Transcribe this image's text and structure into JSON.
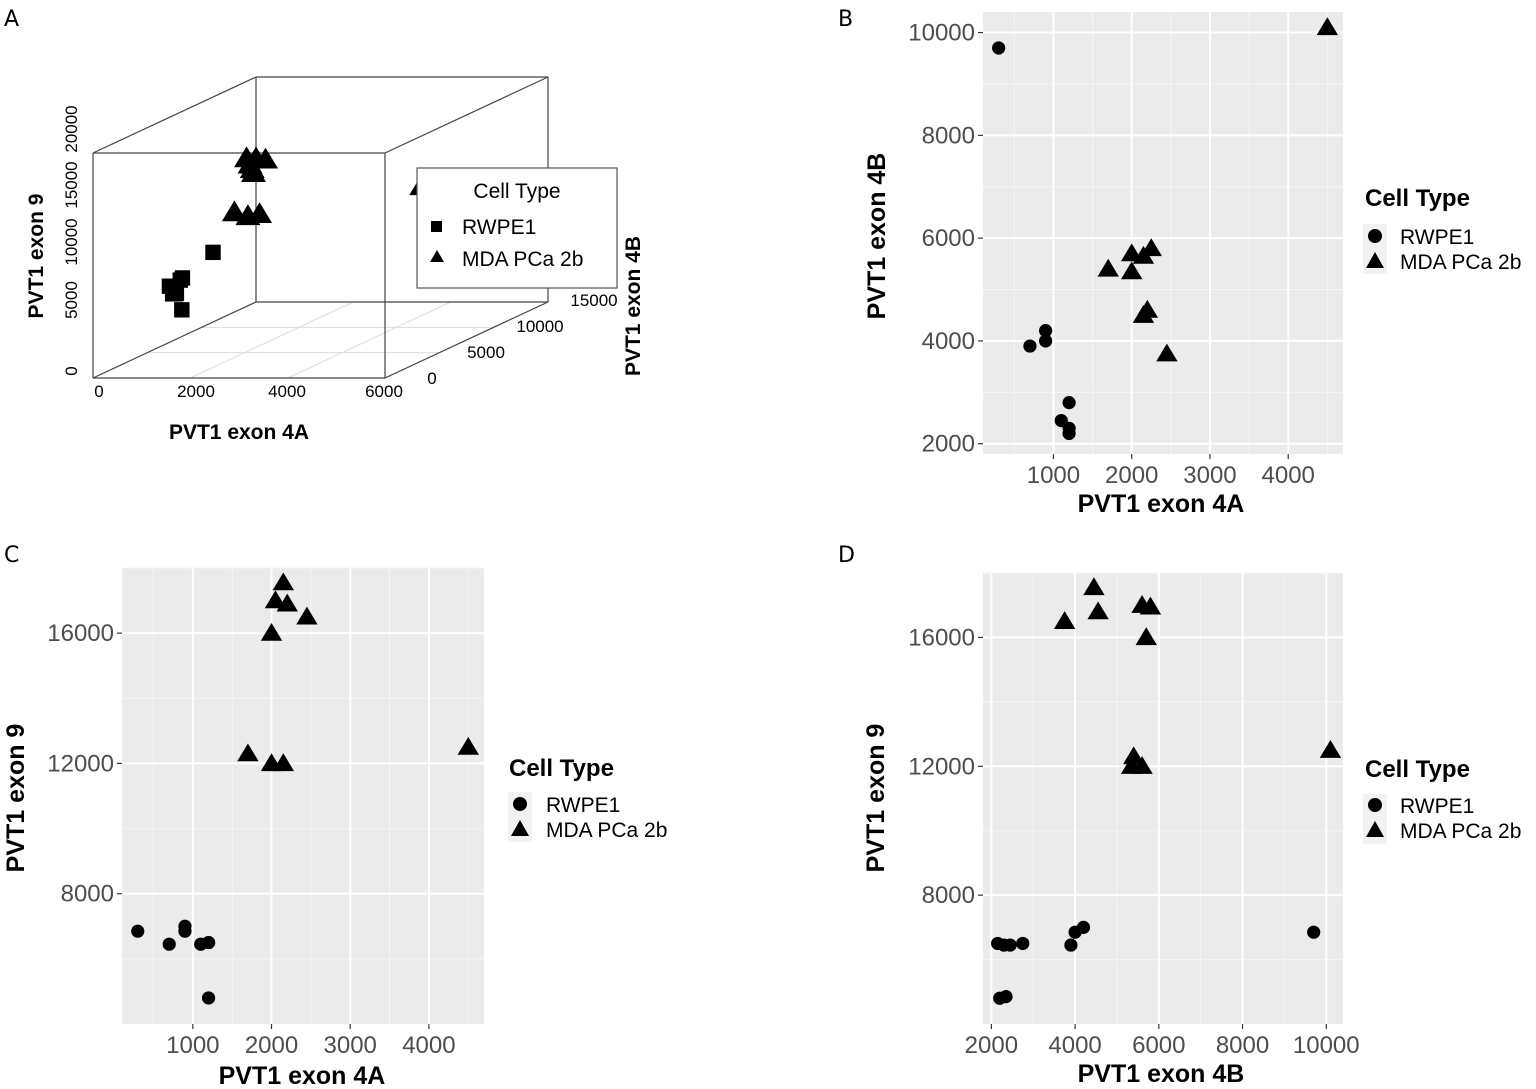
{
  "chart_data": [
    {
      "panel": "A",
      "type": "scatter",
      "title": "",
      "xlabel": "PVT1 exon 4A",
      "ylabel": "PVT1 exon 9",
      "zlabel": "PVT1 exon 4B",
      "x_ticks": [
        "0",
        "2000",
        "4000",
        "6000"
      ],
      "z_ticks": [
        "0",
        "5000",
        "10000",
        "15000"
      ],
      "y_ticks": [
        "0",
        "5000",
        "10000",
        "15000",
        "20000"
      ],
      "xlim": [
        0,
        6000
      ],
      "ylim": [
        0,
        20000
      ],
      "zlim": [
        0,
        15000
      ],
      "legend": {
        "title": "Cell Type",
        "items": [
          "RWPE1",
          "MDA PCa 2b"
        ],
        "markers": [
          "square",
          "triangle"
        ],
        "position": "right"
      },
      "series": [
        {
          "name": "RWPE1",
          "marker": "square",
          "points": [
            [
              300,
              6800,
              9700
            ],
            [
              700,
              6400,
              3900
            ],
            [
              900,
              6900,
              4000
            ],
            [
              900,
              7000,
              4200
            ],
            [
              1100,
              6400,
              2400
            ],
            [
              1200,
              6500,
              2300
            ],
            [
              1200,
              6500,
              2200
            ],
            [
              1200,
              4800,
              2800
            ]
          ]
        },
        {
          "name": "MDA PCa 2b",
          "marker": "triangle",
          "points": [
            [
              1700,
              12300,
              5400
            ],
            [
              2000,
              12000,
              5300
            ],
            [
              2150,
              12000,
              5700
            ],
            [
              2000,
              16000,
              5700
            ],
            [
              2100,
              17000,
              5600
            ],
            [
              2200,
              16900,
              4600
            ],
            [
              2150,
              17500,
              4500
            ],
            [
              2250,
              16800,
              5800
            ],
            [
              2450,
              16500,
              3800
            ],
            [
              4500,
              12500,
              10100
            ]
          ]
        }
      ]
    },
    {
      "panel": "B",
      "type": "scatter",
      "title": "",
      "xlabel": "PVT1 exon 4A",
      "ylabel": "PVT1 exon 4B",
      "x_ticks": [
        "1000",
        "2000",
        "3000",
        "4000"
      ],
      "y_ticks": [
        "2000",
        "4000",
        "6000",
        "8000",
        "10000"
      ],
      "xlim": [
        100,
        4700
      ],
      "ylim": [
        1800,
        10400
      ],
      "legend": {
        "title": "Cell Type",
        "items": [
          "RWPE1",
          "MDA PCa 2b"
        ],
        "markers": [
          "circle",
          "triangle"
        ],
        "position": "right"
      },
      "series": [
        {
          "name": "RWPE1",
          "marker": "circle",
          "points": [
            [
              300,
              9700
            ],
            [
              700,
              3900
            ],
            [
              900,
              4000
            ],
            [
              900,
              4200
            ],
            [
              1100,
              2450
            ],
            [
              1200,
              2300
            ],
            [
              1200,
              2200
            ],
            [
              1200,
              2800
            ]
          ]
        },
        {
          "name": "MDA PCa 2b",
          "marker": "triangle",
          "points": [
            [
              1700,
              5400
            ],
            [
              2000,
              5350
            ],
            [
              2000,
              5700
            ],
            [
              2150,
              5650
            ],
            [
              2250,
              5800
            ],
            [
              2200,
              4600
            ],
            [
              2150,
              4500
            ],
            [
              2450,
              3750
            ],
            [
              4500,
              10100
            ]
          ]
        }
      ]
    },
    {
      "panel": "C",
      "type": "scatter",
      "title": "",
      "xlabel": "PVT1 exon 4A",
      "ylabel": "PVT1 exon 9",
      "x_ticks": [
        "1000",
        "2000",
        "3000",
        "4000"
      ],
      "y_ticks": [
        "8000",
        "12000",
        "16000"
      ],
      "xlim": [
        100,
        4700
      ],
      "ylim": [
        4000,
        18000
      ],
      "legend": {
        "title": "Cell Type",
        "items": [
          "RWPE1",
          "MDA PCa 2b"
        ],
        "markers": [
          "circle",
          "triangle"
        ],
        "position": "right"
      },
      "series": [
        {
          "name": "RWPE1",
          "marker": "circle",
          "points": [
            [
              300,
              6850
            ],
            [
              700,
              6450
            ],
            [
              900,
              6850
            ],
            [
              900,
              7000
            ],
            [
              1100,
              6450
            ],
            [
              1200,
              6500
            ],
            [
              1200,
              6500
            ],
            [
              1200,
              4800
            ]
          ]
        },
        {
          "name": "MDA PCa 2b",
          "marker": "triangle",
          "points": [
            [
              1700,
              12300
            ],
            [
              2000,
              12000
            ],
            [
              2150,
              12000
            ],
            [
              2000,
              16000
            ],
            [
              2050,
              17000
            ],
            [
              2200,
              16900
            ],
            [
              2150,
              17550
            ],
            [
              2450,
              16500
            ],
            [
              4500,
              12500
            ]
          ]
        }
      ]
    },
    {
      "panel": "D",
      "type": "scatter",
      "title": "",
      "xlabel": "PVT1 exon 4B",
      "ylabel": "PVT1 exon 9",
      "x_ticks": [
        "2000",
        "4000",
        "6000",
        "8000",
        "10000"
      ],
      "y_ticks": [
        "8000",
        "12000",
        "16000"
      ],
      "xlim": [
        1800,
        10400
      ],
      "ylim": [
        4000,
        18000
      ],
      "legend": {
        "title": "Cell Type",
        "items": [
          "RWPE1",
          "MDA PCa 2b"
        ],
        "markers": [
          "circle",
          "triangle"
        ],
        "position": "right"
      },
      "series": [
        {
          "name": "RWPE1",
          "marker": "circle",
          "points": [
            [
              2150,
              6500
            ],
            [
              2300,
              6450
            ],
            [
              2450,
              6450
            ],
            [
              2750,
              6500
            ],
            [
              2200,
              4800
            ],
            [
              2350,
              4850
            ],
            [
              3900,
              6450
            ],
            [
              4000,
              6850
            ],
            [
              4200,
              7000
            ],
            [
              9700,
              6850
            ]
          ]
        },
        {
          "name": "MDA PCa 2b",
          "marker": "triangle",
          "points": [
            [
              3750,
              16500
            ],
            [
              4450,
              17550
            ],
            [
              4550,
              16800
            ],
            [
              5350,
              12000
            ],
            [
              5400,
              12300
            ],
            [
              5600,
              12000
            ],
            [
              5600,
              17000
            ],
            [
              5800,
              16950
            ],
            [
              5700,
              16000
            ],
            [
              10100,
              12500
            ]
          ]
        }
      ]
    }
  ]
}
